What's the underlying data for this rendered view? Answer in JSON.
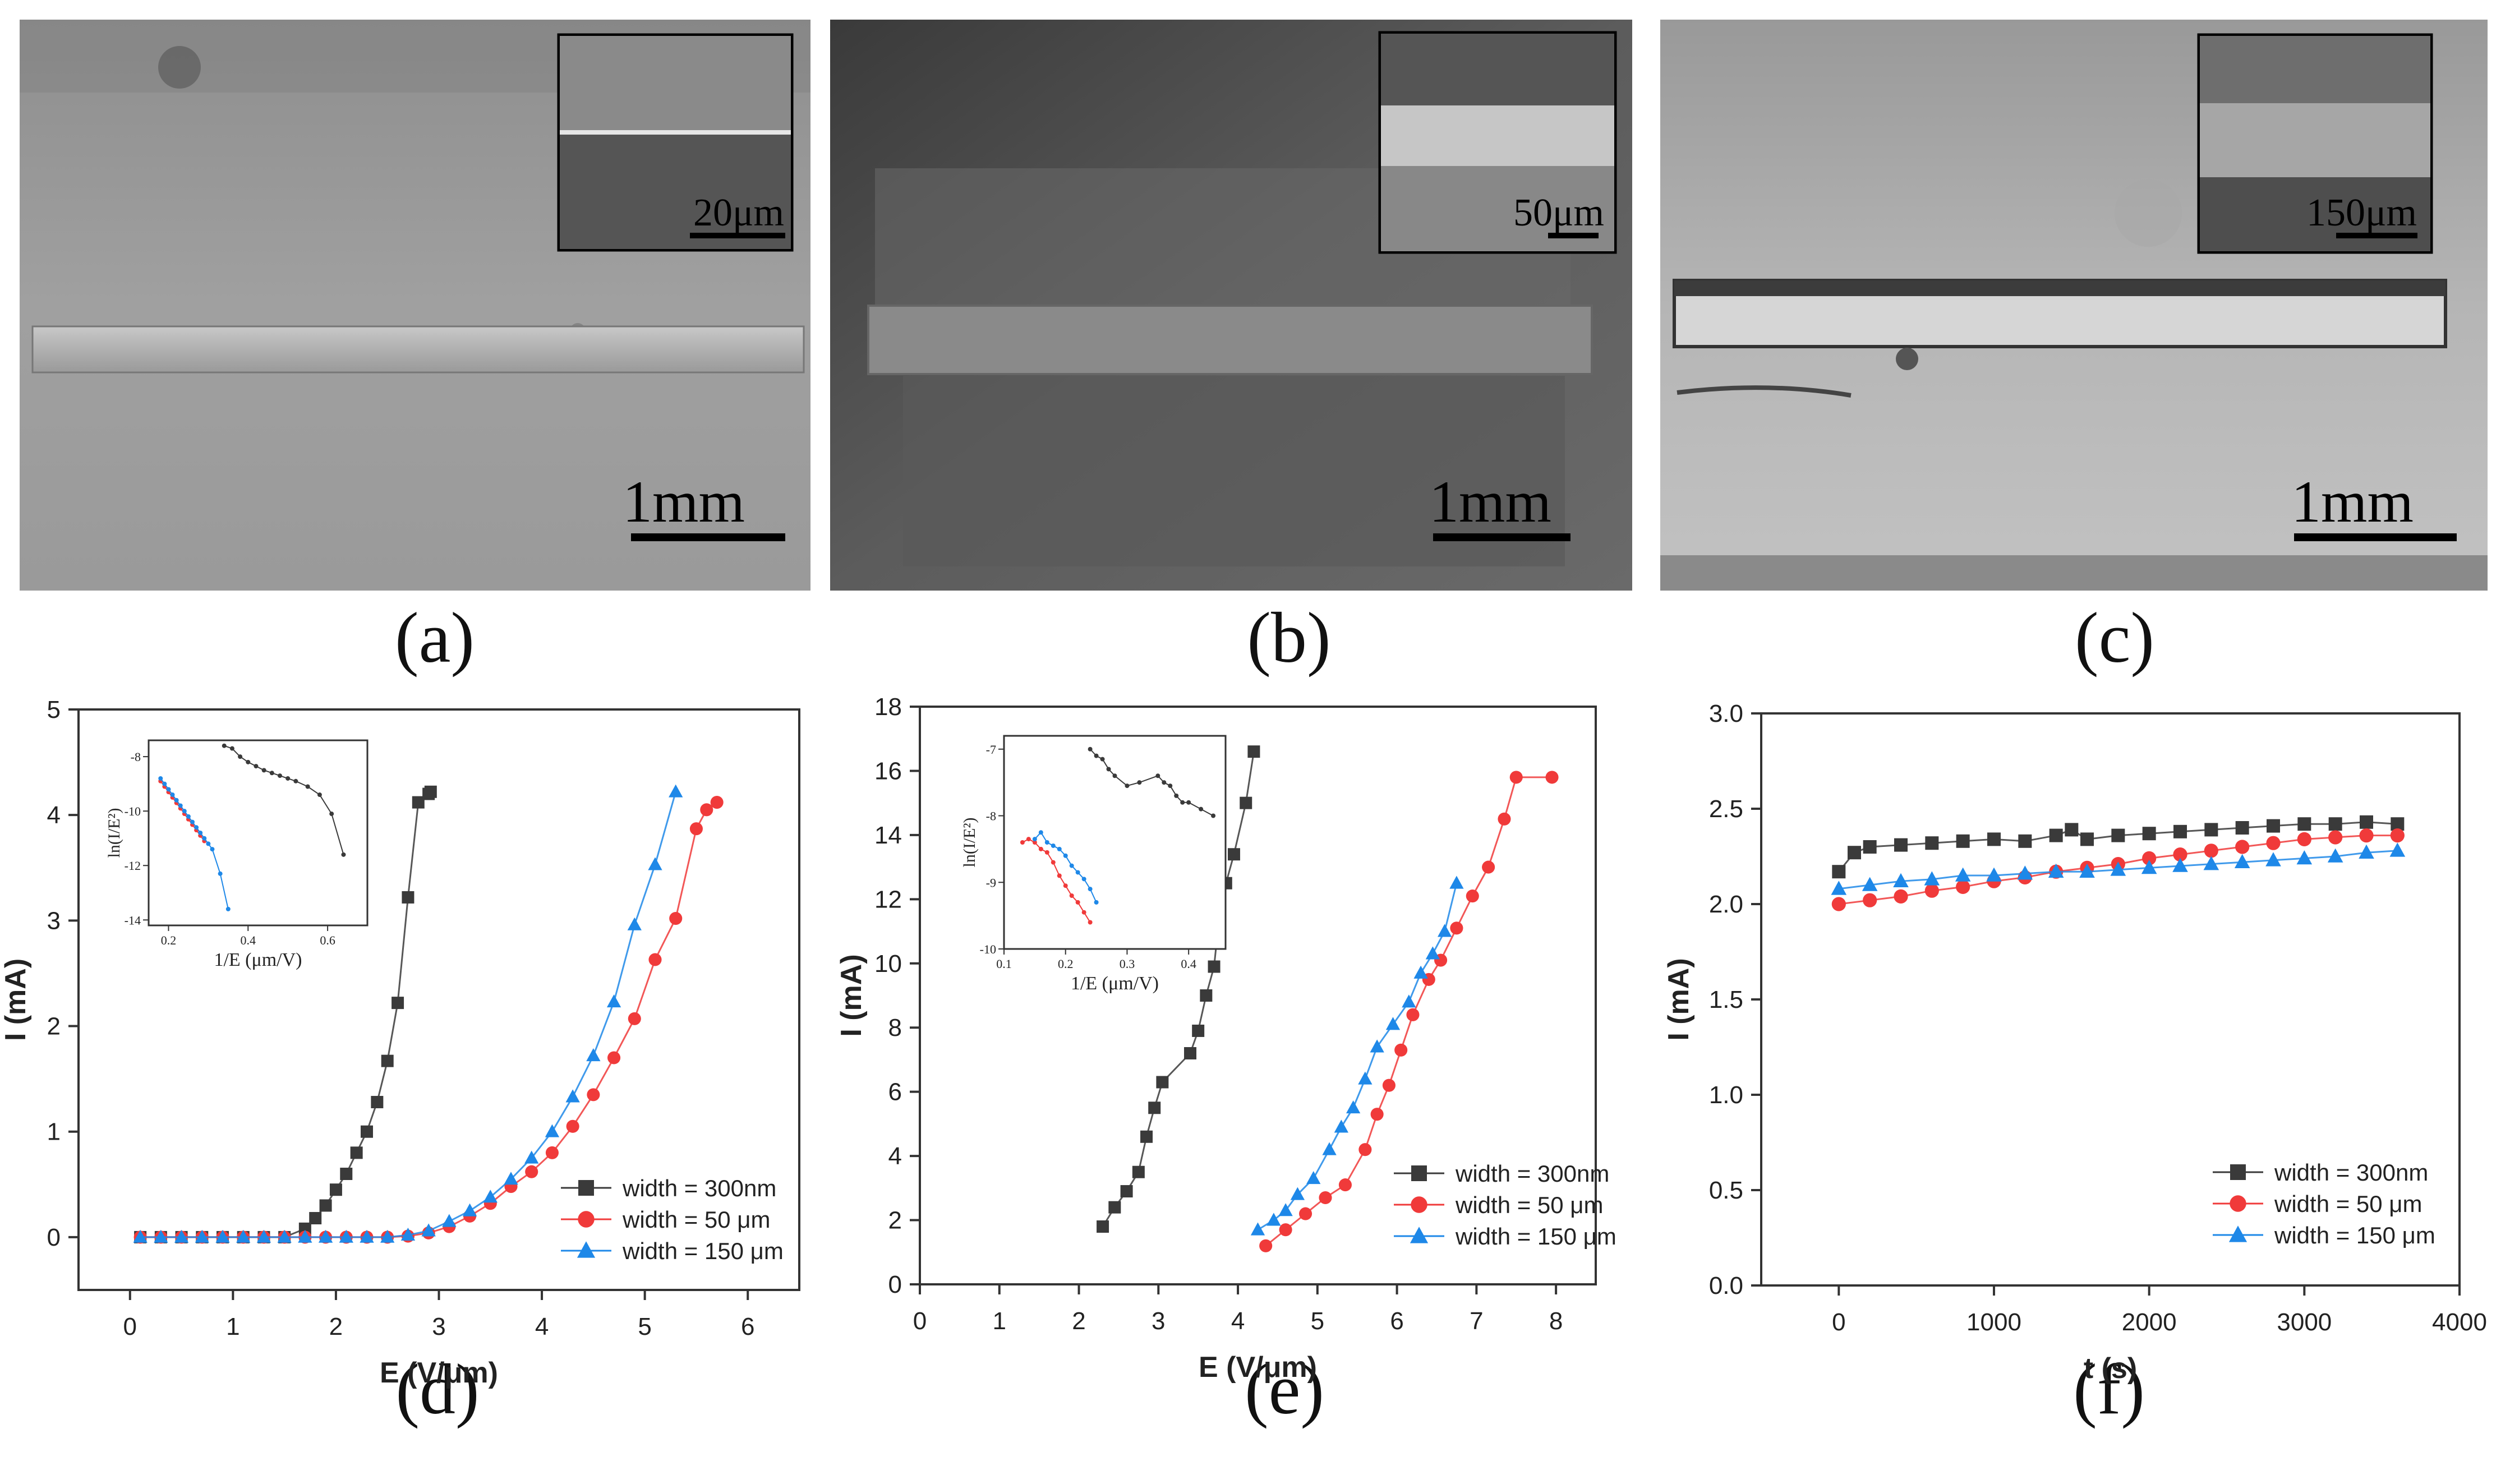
{
  "panel_labels": [
    "(a)",
    "(b)",
    "(c)",
    "(d)",
    "(e)",
    "(f)"
  ],
  "sem_images": [
    {
      "scale": "1mm",
      "inset_scale": "20μm"
    },
    {
      "scale": "1mm",
      "inset_scale": "50μm"
    },
    {
      "scale": "1mm",
      "inset_scale": "150μm"
    }
  ],
  "colors": {
    "black_series": "#3a3a3a",
    "red_series": "#f03a3a",
    "blue_series": "#1e88e8"
  },
  "chart_data": [
    {
      "id": "d",
      "type": "line",
      "xlabel": "E (V/μm)",
      "ylabel": "I (mA)",
      "xlim": [
        -0.5,
        6.5
      ],
      "ylim": [
        -0.5,
        5
      ],
      "xticks": [
        0,
        1,
        2,
        3,
        4,
        5,
        6
      ],
      "yticks": [
        0,
        1,
        2,
        3,
        4,
        5
      ],
      "legend_position": "bottom-right",
      "series": [
        {
          "name": "width = 300nm",
          "marker": "square",
          "color": "#3a3a3a",
          "x": [
            0.1,
            0.3,
            0.5,
            0.7,
            0.9,
            1.1,
            1.3,
            1.5,
            1.7,
            1.8,
            1.9,
            2.0,
            2.1,
            2.2,
            2.3,
            2.4,
            2.5,
            2.6,
            2.7,
            2.8,
            2.9,
            2.92
          ],
          "y": [
            0,
            0,
            0,
            0,
            0,
            0,
            0,
            0,
            0.08,
            0.18,
            0.3,
            0.45,
            0.6,
            0.8,
            1.0,
            1.28,
            1.67,
            2.22,
            3.22,
            4.12,
            4.2,
            4.22
          ]
        },
        {
          "name": "width = 50 μm",
          "marker": "circle",
          "color": "#f03a3a",
          "x": [
            0.1,
            0.3,
            0.5,
            0.7,
            0.9,
            1.1,
            1.3,
            1.5,
            1.7,
            1.9,
            2.1,
            2.3,
            2.5,
            2.7,
            2.9,
            3.1,
            3.3,
            3.5,
            3.7,
            3.9,
            4.1,
            4.3,
            4.5,
            4.7,
            4.9,
            5.1,
            5.3,
            5.5,
            5.6,
            5.7
          ],
          "y": [
            0,
            0,
            0,
            0,
            0,
            0,
            0,
            0,
            0,
            0,
            0,
            0,
            0,
            0.01,
            0.04,
            0.1,
            0.2,
            0.32,
            0.48,
            0.62,
            0.8,
            1.05,
            1.35,
            1.7,
            2.07,
            2.63,
            3.02,
            3.87,
            4.05,
            4.12
          ]
        },
        {
          "name": "width = 150 μm",
          "marker": "triangle",
          "color": "#1e88e8",
          "x": [
            0.1,
            0.3,
            0.5,
            0.7,
            0.9,
            1.1,
            1.3,
            1.5,
            1.7,
            1.9,
            2.1,
            2.3,
            2.5,
            2.7,
            2.9,
            3.1,
            3.3,
            3.5,
            3.7,
            3.9,
            4.1,
            4.3,
            4.5,
            4.7,
            4.9,
            5.1,
            5.3
          ],
          "y": [
            0,
            0,
            0,
            0,
            0,
            0,
            0,
            0,
            0,
            0,
            0,
            0,
            0,
            0.02,
            0.06,
            0.15,
            0.25,
            0.38,
            0.55,
            0.75,
            1.0,
            1.33,
            1.72,
            2.23,
            2.96,
            3.53,
            4.22
          ]
        }
      ],
      "inset": {
        "xlabel": "1/E (μm/V)",
        "ylabel": "ln(I/E²)",
        "xlim": [
          0.15,
          0.7
        ],
        "ylim": [
          -14.2,
          -7.4
        ],
        "xticks": [
          0.2,
          0.4,
          0.6
        ],
        "xtick_labels": [
          "0.2",
          "0.4",
          "0.6"
        ],
        "yticks": [
          -8,
          -10,
          -12,
          -14
        ],
        "ytick_labels": [
          "-8",
          "-10",
          "-12",
          "-14"
        ],
        "series": [
          {
            "color": "#3a3a3a",
            "x": [
              0.34,
              0.36,
              0.38,
              0.4,
              0.42,
              0.44,
              0.46,
              0.48,
              0.5,
              0.52,
              0.55,
              0.58,
              0.61,
              0.64
            ],
            "y": [
              -7.6,
              -7.7,
              -8.0,
              -8.2,
              -8.35,
              -8.5,
              -8.6,
              -8.7,
              -8.8,
              -8.9,
              -9.1,
              -9.4,
              -10.1,
              -11.6
            ]
          },
          {
            "color": "#f03a3a",
            "x": [
              0.18,
              0.19,
              0.2,
              0.21,
              0.22,
              0.23,
              0.24,
              0.25,
              0.26,
              0.27,
              0.28,
              0.29
            ],
            "y": [
              -8.9,
              -9.1,
              -9.3,
              -9.5,
              -9.7,
              -9.9,
              -10.1,
              -10.3,
              -10.5,
              -10.7,
              -10.9,
              -11.1
            ]
          },
          {
            "color": "#1e88e8",
            "x": [
              0.18,
              0.19,
              0.2,
              0.21,
              0.22,
              0.23,
              0.24,
              0.25,
              0.26,
              0.27,
              0.28,
              0.29,
              0.3,
              0.31,
              0.33,
              0.35
            ],
            "y": [
              -8.8,
              -9.0,
              -9.2,
              -9.4,
              -9.6,
              -9.8,
              -10.0,
              -10.2,
              -10.4,
              -10.6,
              -10.8,
              -11.0,
              -11.2,
              -11.4,
              -12.3,
              -13.6
            ]
          }
        ]
      }
    },
    {
      "id": "e",
      "type": "line",
      "xlabel": "E (V/μm)",
      "ylabel": "I (mA)",
      "xlim": [
        0,
        8.5
      ],
      "ylim": [
        0,
        18
      ],
      "xticks": [
        0,
        1,
        2,
        3,
        4,
        5,
        6,
        7,
        8
      ],
      "yticks": [
        0,
        2,
        4,
        6,
        8,
        10,
        12,
        14,
        16,
        18
      ],
      "legend_position": "bottom-right",
      "series": [
        {
          "name": "width = 300nm",
          "marker": "square",
          "color": "#3a3a3a",
          "x": [
            2.3,
            2.45,
            2.6,
            2.75,
            2.85,
            2.95,
            3.05,
            3.4,
            3.5,
            3.6,
            3.7,
            3.75,
            3.85,
            3.95,
            4.1,
            4.2
          ],
          "y": [
            1.8,
            2.4,
            2.9,
            3.5,
            4.6,
            5.5,
            6.3,
            7.2,
            7.9,
            9.0,
            9.9,
            11.1,
            12.5,
            13.4,
            15.0,
            16.6
          ]
        },
        {
          "name": "width = 50 μm",
          "marker": "circle",
          "color": "#f03a3a",
          "x": [
            4.35,
            4.6,
            4.85,
            5.1,
            5.35,
            5.6,
            5.75,
            5.9,
            6.05,
            6.2,
            6.4,
            6.55,
            6.75,
            6.95,
            7.15,
            7.35,
            7.5,
            7.95
          ],
          "y": [
            1.2,
            1.7,
            2.2,
            2.7,
            3.1,
            4.2,
            5.3,
            6.2,
            7.3,
            8.4,
            9.5,
            10.1,
            11.1,
            12.1,
            13.0,
            14.5,
            15.8,
            15.8
          ]
        },
        {
          "name": "width = 150 μm",
          "marker": "triangle",
          "color": "#1e88e8",
          "x": [
            4.25,
            4.45,
            4.6,
            4.75,
            4.95,
            5.15,
            5.3,
            5.45,
            5.6,
            5.75,
            5.95,
            6.15,
            6.3,
            6.45,
            6.6,
            6.75
          ],
          "y": [
            1.7,
            2.0,
            2.3,
            2.8,
            3.3,
            4.2,
            4.9,
            5.5,
            6.4,
            7.4,
            8.1,
            8.8,
            9.7,
            10.3,
            11.0,
            12.5
          ]
        }
      ],
      "inset": {
        "xlabel": "1/E (μm/V)",
        "ylabel": "ln(I/E²)",
        "xlim": [
          0.1,
          0.46
        ],
        "ylim": [
          -10,
          -6.8
        ],
        "xticks": [
          0.1,
          0.2,
          0.3,
          0.4
        ],
        "xtick_labels": [
          "0.1",
          "0.2",
          "0.3",
          "0.4"
        ],
        "yticks": [
          -7,
          -8,
          -9,
          -10
        ],
        "ytick_labels": [
          "-7",
          "-8",
          "-9",
          "-10"
        ],
        "series": [
          {
            "color": "#3a3a3a",
            "x": [
              0.24,
              0.25,
              0.26,
              0.27,
              0.28,
              0.3,
              0.32,
              0.35,
              0.36,
              0.37,
              0.38,
              0.39,
              0.4,
              0.42,
              0.44
            ],
            "y": [
              -7.0,
              -7.1,
              -7.15,
              -7.3,
              -7.4,
              -7.55,
              -7.5,
              -7.4,
              -7.5,
              -7.55,
              -7.7,
              -7.8,
              -7.8,
              -7.9,
              -8.0
            ]
          },
          {
            "color": "#f03a3a",
            "x": [
              0.13,
              0.14,
              0.15,
              0.16,
              0.17,
              0.18,
              0.19,
              0.2,
              0.21,
              0.22,
              0.23,
              0.24
            ],
            "y": [
              -8.4,
              -8.35,
              -8.4,
              -8.5,
              -8.55,
              -8.7,
              -8.9,
              -9.05,
              -9.2,
              -9.3,
              -9.45,
              -9.6
            ]
          },
          {
            "color": "#1e88e8",
            "x": [
              0.15,
              0.16,
              0.17,
              0.18,
              0.19,
              0.2,
              0.21,
              0.22,
              0.23,
              0.24,
              0.25
            ],
            "y": [
              -8.35,
              -8.25,
              -8.4,
              -8.45,
              -8.5,
              -8.6,
              -8.75,
              -8.85,
              -8.95,
              -9.1,
              -9.3
            ]
          }
        ]
      }
    },
    {
      "id": "f",
      "type": "scatter",
      "xlabel": "t (s)",
      "ylabel": "I (mA)",
      "xlim": [
        -500,
        4000
      ],
      "ylim": [
        0,
        3.0
      ],
      "xticks": [
        0,
        1000,
        2000,
        3000,
        4000
      ],
      "yticks": [
        0.0,
        0.5,
        1.0,
        1.5,
        2.0,
        2.5,
        3.0
      ],
      "ytick_labels": [
        "0.0",
        "0.5",
        "1.0",
        "1.5",
        "2.0",
        "2.5",
        "3.0"
      ],
      "legend_position": "bottom-right",
      "series": [
        {
          "name": "width = 300nm",
          "marker": "square",
          "color": "#3a3a3a",
          "x": [
            0,
            100,
            200,
            400,
            600,
            800,
            1000,
            1200,
            1400,
            1500,
            1600,
            1800,
            2000,
            2200,
            2400,
            2600,
            2800,
            3000,
            3200,
            3400,
            3600
          ],
          "y": [
            2.17,
            2.27,
            2.3,
            2.31,
            2.32,
            2.33,
            2.34,
            2.33,
            2.36,
            2.39,
            2.34,
            2.36,
            2.37,
            2.38,
            2.39,
            2.4,
            2.41,
            2.42,
            2.42,
            2.43,
            2.42
          ]
        },
        {
          "name": "width = 50 μm",
          "marker": "circle",
          "color": "#f03a3a",
          "x": [
            0,
            200,
            400,
            600,
            800,
            1000,
            1200,
            1400,
            1600,
            1800,
            2000,
            2200,
            2400,
            2600,
            2800,
            3000,
            3200,
            3400,
            3600
          ],
          "y": [
            2.0,
            2.02,
            2.04,
            2.07,
            2.09,
            2.12,
            2.14,
            2.17,
            2.19,
            2.21,
            2.24,
            2.26,
            2.28,
            2.3,
            2.32,
            2.34,
            2.35,
            2.36,
            2.36
          ]
        },
        {
          "name": "width = 150 μm",
          "marker": "triangle",
          "color": "#1e88e8",
          "x": [
            0,
            200,
            400,
            600,
            800,
            1000,
            1200,
            1400,
            1600,
            1800,
            2000,
            2200,
            2400,
            2600,
            2800,
            3000,
            3200,
            3400,
            3600
          ],
          "y": [
            2.08,
            2.1,
            2.12,
            2.13,
            2.15,
            2.15,
            2.16,
            2.17,
            2.17,
            2.18,
            2.19,
            2.2,
            2.21,
            2.22,
            2.23,
            2.24,
            2.25,
            2.27,
            2.28
          ]
        }
      ]
    }
  ]
}
